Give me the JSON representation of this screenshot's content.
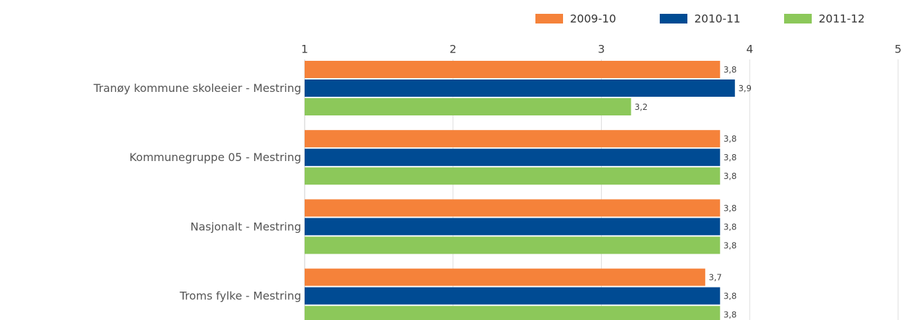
{
  "chart_data": {
    "type": "bar",
    "orientation": "horizontal",
    "categories": [
      "Tranøy kommune skoleeier - Mestring",
      "Kommunegruppe 05 - Mestring",
      "Nasjonalt - Mestring",
      "Troms fylke - Mestring"
    ],
    "series": [
      {
        "name": "2009-10",
        "color": "#f5823a",
        "values": [
          3.8,
          3.8,
          3.8,
          3.7
        ],
        "value_labels": [
          "3,8",
          "3,8",
          "3,8",
          "3,7"
        ]
      },
      {
        "name": "2010-11",
        "color": "#004b93",
        "values": [
          3.9,
          3.8,
          3.8,
          3.8
        ],
        "value_labels": [
          "3,9",
          "3,8",
          "3,8",
          "3,8"
        ]
      },
      {
        "name": "2011-12",
        "color": "#8cc85a",
        "values": [
          3.2,
          3.8,
          3.8,
          3.8
        ],
        "value_labels": [
          "3,2",
          "3,8",
          "3,8",
          "3,8"
        ]
      }
    ],
    "xlim": [
      1,
      5
    ],
    "xticks": [
      1,
      2,
      3,
      4,
      5
    ],
    "grid": true,
    "legend": "top-right"
  }
}
